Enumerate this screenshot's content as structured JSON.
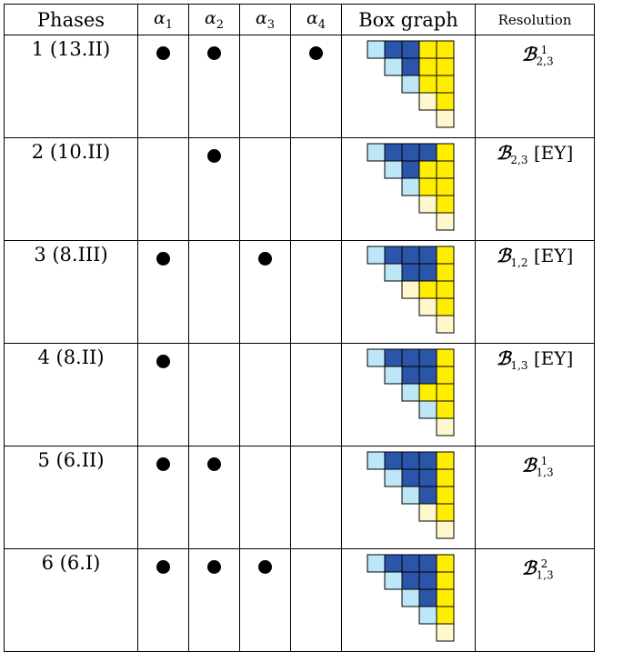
{
  "header": {
    "phases": "Phases",
    "alpha_symbol": "α",
    "alpha_indices": [
      "1",
      "2",
      "3",
      "4"
    ],
    "box_graph": "Box graph",
    "resolution": "Resolution"
  },
  "colors": {
    "light_blue": "#bde6f7",
    "dark_blue": "#2a55a8",
    "yellow": "#ffee00",
    "light_yellow": "#fff8cc",
    "grid": "#000000"
  },
  "rows": [
    {
      "phase": "1 (13.II)",
      "alphas": [
        true,
        true,
        false,
        true
      ],
      "box_rows": [
        [
          "lb",
          "db",
          "db",
          "y",
          "y"
        ],
        [
          "lb",
          "db",
          "y",
          "y"
        ],
        [
          "lb",
          "y",
          "y"
        ],
        [
          "ly",
          "y"
        ],
        [
          "ly"
        ]
      ],
      "res_symbol": "ℬ",
      "res_sub": "2,3",
      "res_sup": "1",
      "res_tag": ""
    },
    {
      "phase": "2 (10.II)",
      "alphas": [
        false,
        true,
        false,
        false
      ],
      "box_rows": [
        [
          "lb",
          "db",
          "db",
          "db",
          "y"
        ],
        [
          "lb",
          "db",
          "y",
          "y"
        ],
        [
          "lb",
          "y",
          "y"
        ],
        [
          "ly",
          "y"
        ],
        [
          "ly"
        ]
      ],
      "res_symbol": "ℬ",
      "res_sub": "2,3",
      "res_sup": "",
      "res_tag": "[EY]"
    },
    {
      "phase": "3 (8.III)",
      "alphas": [
        true,
        false,
        true,
        false
      ],
      "box_rows": [
        [
          "lb",
          "db",
          "db",
          "db",
          "y"
        ],
        [
          "lb",
          "db",
          "db",
          "y"
        ],
        [
          "ly",
          "y",
          "y"
        ],
        [
          "ly",
          "y"
        ],
        [
          "ly"
        ]
      ],
      "res_symbol": "ℬ",
      "res_sub": "1,2",
      "res_sup": "",
      "res_tag": "[EY]"
    },
    {
      "phase": "4 (8.II)",
      "alphas": [
        true,
        false,
        false,
        false
      ],
      "box_rows": [
        [
          "lb",
          "db",
          "db",
          "db",
          "y"
        ],
        [
          "lb",
          "db",
          "db",
          "y"
        ],
        [
          "lb",
          "y",
          "y"
        ],
        [
          "lb",
          "y"
        ],
        [
          "ly"
        ]
      ],
      "res_symbol": "ℬ",
      "res_sub": "1,3",
      "res_sup": "",
      "res_tag": "[EY]"
    },
    {
      "phase": "5 (6.II)",
      "alphas": [
        true,
        true,
        false,
        false
      ],
      "box_rows": [
        [
          "lb",
          "db",
          "db",
          "db",
          "y"
        ],
        [
          "lb",
          "db",
          "db",
          "y"
        ],
        [
          "lb",
          "db",
          "y"
        ],
        [
          "ly",
          "y"
        ],
        [
          "ly"
        ]
      ],
      "res_symbol": "ℬ",
      "res_sub": "1,3",
      "res_sup": "1",
      "res_tag": ""
    },
    {
      "phase": "6 (6.I)",
      "alphas": [
        true,
        true,
        true,
        false
      ],
      "box_rows": [
        [
          "lb",
          "db",
          "db",
          "db",
          "y"
        ],
        [
          "lb",
          "db",
          "db",
          "y"
        ],
        [
          "lb",
          "db",
          "y"
        ],
        [
          "lb",
          "y"
        ],
        [
          "ly"
        ]
      ],
      "res_symbol": "ℬ",
      "res_sub": "1,3",
      "res_sup": "2",
      "res_tag": ""
    }
  ]
}
